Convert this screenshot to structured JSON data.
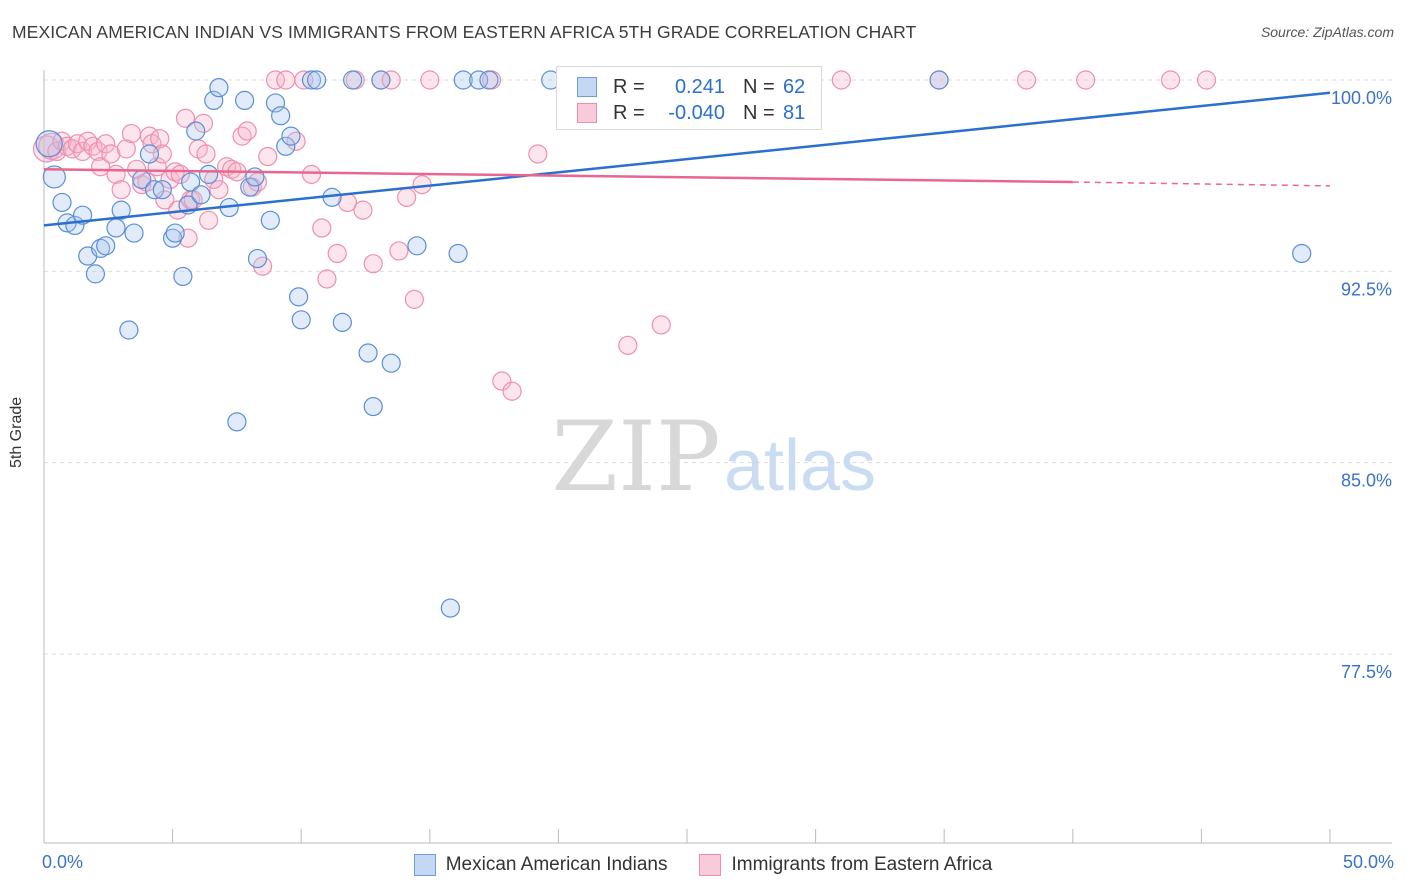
{
  "header": {
    "title": "MEXICAN AMERICAN INDIAN VS IMMIGRANTS FROM EASTERN AFRICA 5TH GRADE CORRELATION CHART",
    "source": "Source: ZipAtlas.com"
  },
  "watermark": {
    "zip": "ZIP",
    "atlas": "atlas"
  },
  "legend_stats": [
    {
      "r_label": "R =",
      "r_value": "0.241",
      "n_label": "N =",
      "n_value": "62"
    },
    {
      "r_label": "R =",
      "r_value": "-0.040",
      "n_label": "N =",
      "n_value": "81"
    }
  ],
  "chart_data": {
    "type": "scatter",
    "title": "MEXICAN AMERICAN INDIAN VS IMMIGRANTS FROM EASTERN AFRICA 5TH GRADE CORRELATION CHART",
    "xlabel": "",
    "ylabel": "5th Grade",
    "xlim": [
      0,
      50
    ],
    "ylim": [
      70.0,
      101.2
    ],
    "x_tick_labels": [
      "0.0%",
      "50.0%"
    ],
    "y_ticks": [
      100.0,
      92.5,
      85.0,
      77.5
    ],
    "y_tick_labels": [
      "100.0%",
      "92.5%",
      "85.0%",
      "77.5%"
    ],
    "grid": true,
    "colors": {
      "blue": "#5b8fd6",
      "blue_line": "#2b6fcf",
      "pink": "#ee8fb0",
      "pink_line": "#e8668f",
      "axis_text": "#3b72c9"
    },
    "series": [
      {
        "name": "Mexican American Indians",
        "color": "#5b8fd6",
        "trend": {
          "x": [
            0,
            50
          ],
          "y": [
            94.3,
            99.5
          ]
        },
        "points": [
          [
            0.2,
            97.5
          ],
          [
            0.4,
            96.2
          ],
          [
            0.7,
            95.2
          ],
          [
            0.9,
            94.4
          ],
          [
            1.2,
            94.3
          ],
          [
            1.5,
            94.7
          ],
          [
            1.7,
            93.1
          ],
          [
            2.0,
            92.4
          ],
          [
            2.2,
            93.4
          ],
          [
            2.4,
            93.5
          ],
          [
            2.8,
            94.2
          ],
          [
            3.0,
            94.9
          ],
          [
            3.3,
            90.2
          ],
          [
            3.5,
            94.0
          ],
          [
            3.8,
            96.1
          ],
          [
            4.1,
            97.1
          ],
          [
            4.3,
            95.7
          ],
          [
            4.6,
            95.7
          ],
          [
            5.0,
            93.8
          ],
          [
            5.1,
            94.0
          ],
          [
            5.4,
            92.3
          ],
          [
            5.6,
            95.1
          ],
          [
            5.7,
            96.0
          ],
          [
            5.9,
            98.0
          ],
          [
            6.1,
            95.5
          ],
          [
            6.4,
            96.3
          ],
          [
            6.6,
            99.2
          ],
          [
            6.8,
            99.7
          ],
          [
            7.2,
            95.0
          ],
          [
            7.5,
            86.6
          ],
          [
            7.8,
            99.2
          ],
          [
            8.0,
            95.8
          ],
          [
            8.2,
            96.2
          ],
          [
            8.3,
            93.0
          ],
          [
            8.8,
            94.5
          ],
          [
            9.0,
            99.1
          ],
          [
            9.2,
            98.6
          ],
          [
            9.4,
            97.4
          ],
          [
            9.6,
            97.8
          ],
          [
            9.9,
            91.5
          ],
          [
            10.0,
            90.6
          ],
          [
            10.4,
            100.0
          ],
          [
            10.6,
            100.0
          ],
          [
            11.2,
            95.4
          ],
          [
            11.6,
            90.5
          ],
          [
            12.0,
            100.0
          ],
          [
            12.6,
            89.3
          ],
          [
            12.8,
            87.2
          ],
          [
            13.1,
            100.0
          ],
          [
            13.5,
            88.9
          ],
          [
            14.5,
            93.5
          ],
          [
            15.8,
            79.3
          ],
          [
            16.1,
            93.2
          ],
          [
            16.3,
            100.0
          ],
          [
            16.9,
            100.0
          ],
          [
            17.3,
            100.0
          ],
          [
            19.7,
            100.0
          ],
          [
            21.2,
            100.0
          ],
          [
            24.0,
            100.0
          ],
          [
            29.8,
            100.0
          ],
          [
            34.8,
            100.0
          ],
          [
            48.9,
            93.2
          ]
        ]
      },
      {
        "name": "Immigrants from Eastern Africa",
        "color": "#ee8fb0",
        "trend": {
          "x": [
            0,
            40
          ],
          "y": [
            96.5,
            96.0
          ]
        },
        "trend_dashed": {
          "x": [
            40,
            50
          ],
          "y": [
            96.0,
            95.85
          ]
        },
        "points": [
          [
            0.1,
            97.3
          ],
          [
            0.3,
            97.4
          ],
          [
            0.5,
            97.2
          ],
          [
            0.7,
            97.6
          ],
          [
            0.9,
            97.4
          ],
          [
            1.1,
            97.3
          ],
          [
            1.3,
            97.5
          ],
          [
            1.5,
            97.2
          ],
          [
            1.7,
            97.6
          ],
          [
            1.9,
            97.4
          ],
          [
            2.1,
            97.2
          ],
          [
            2.2,
            96.6
          ],
          [
            2.4,
            97.5
          ],
          [
            2.6,
            97.1
          ],
          [
            2.8,
            96.3
          ],
          [
            3.0,
            95.7
          ],
          [
            3.2,
            97.3
          ],
          [
            3.4,
            97.9
          ],
          [
            3.6,
            96.5
          ],
          [
            3.8,
            95.9
          ],
          [
            4.0,
            96.0
          ],
          [
            4.1,
            97.8
          ],
          [
            4.2,
            97.5
          ],
          [
            4.4,
            96.6
          ],
          [
            4.5,
            97.7
          ],
          [
            4.6,
            97.1
          ],
          [
            4.7,
            95.3
          ],
          [
            4.9,
            96.1
          ],
          [
            5.1,
            96.4
          ],
          [
            5.2,
            94.9
          ],
          [
            5.3,
            96.3
          ],
          [
            5.5,
            98.5
          ],
          [
            5.6,
            93.8
          ],
          [
            5.7,
            95.3
          ],
          [
            5.8,
            95.3
          ],
          [
            6.0,
            97.3
          ],
          [
            6.2,
            98.3
          ],
          [
            6.3,
            97.1
          ],
          [
            6.4,
            94.5
          ],
          [
            6.6,
            96.1
          ],
          [
            6.8,
            95.7
          ],
          [
            7.1,
            96.6
          ],
          [
            7.3,
            96.5
          ],
          [
            7.5,
            96.4
          ],
          [
            7.7,
            97.8
          ],
          [
            7.9,
            98.0
          ],
          [
            8.1,
            95.8
          ],
          [
            8.3,
            96.0
          ],
          [
            8.5,
            92.7
          ],
          [
            8.7,
            97.0
          ],
          [
            9.0,
            100.0
          ],
          [
            9.4,
            100.0
          ],
          [
            9.8,
            97.6
          ],
          [
            10.1,
            100.0
          ],
          [
            10.4,
            96.3
          ],
          [
            10.8,
            94.2
          ],
          [
            11.0,
            92.2
          ],
          [
            11.4,
            93.2
          ],
          [
            11.8,
            95.2
          ],
          [
            12.1,
            100.0
          ],
          [
            12.4,
            94.9
          ],
          [
            12.8,
            92.8
          ],
          [
            13.1,
            100.0
          ],
          [
            13.5,
            100.0
          ],
          [
            13.8,
            93.3
          ],
          [
            14.1,
            95.4
          ],
          [
            14.4,
            91.4
          ],
          [
            14.7,
            95.9
          ],
          [
            15.0,
            100.0
          ],
          [
            17.4,
            100.0
          ],
          [
            17.8,
            88.2
          ],
          [
            18.2,
            87.8
          ],
          [
            19.2,
            97.1
          ],
          [
            22.7,
            89.6
          ],
          [
            24.0,
            90.4
          ],
          [
            31.0,
            100.0
          ],
          [
            34.8,
            100.0
          ],
          [
            38.2,
            100.0
          ],
          [
            40.5,
            100.0
          ],
          [
            43.8,
            100.0
          ],
          [
            45.2,
            100.0
          ]
        ]
      }
    ]
  }
}
